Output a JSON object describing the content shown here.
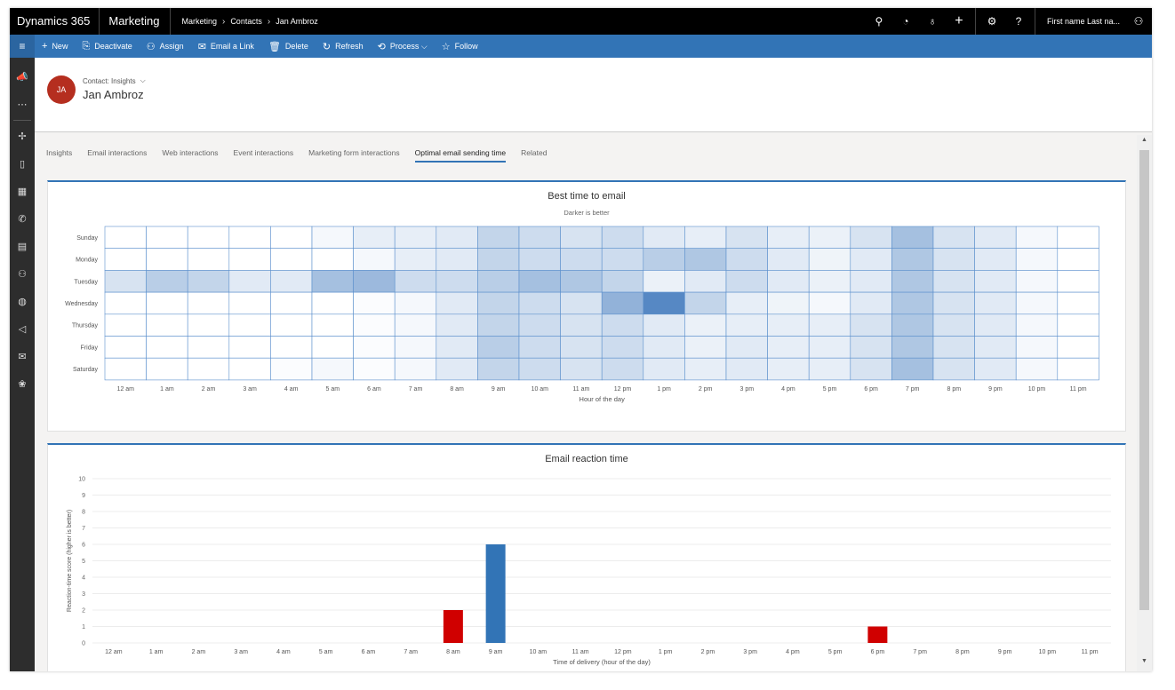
{
  "topbar": {
    "brand": "Dynamics 365",
    "app": "Marketing",
    "breadcrumb": [
      "Marketing",
      "Contacts",
      "Jan Ambroz"
    ],
    "user": "First name Last na..."
  },
  "commands": [
    {
      "icon": "plus-icon",
      "glyph": "+",
      "label": "New"
    },
    {
      "icon": "deactivate-icon",
      "glyph": "⎘",
      "label": "Deactivate"
    },
    {
      "icon": "assign-icon",
      "glyph": "⚇",
      "label": "Assign"
    },
    {
      "icon": "email-link-icon",
      "glyph": "✉",
      "label": "Email a Link"
    },
    {
      "icon": "trash-icon",
      "glyph": "🗑",
      "label": "Delete"
    },
    {
      "icon": "refresh-icon",
      "glyph": "↻",
      "label": "Refresh"
    },
    {
      "icon": "process-icon",
      "glyph": "⟲",
      "label": "Process ⌵"
    },
    {
      "icon": "star-icon",
      "glyph": "☆",
      "label": "Follow"
    }
  ],
  "form": {
    "initials": "JA",
    "entity_label": "Contact: Insights",
    "name": "Jan Ambroz"
  },
  "tabs": [
    "Insights",
    "Email interactions",
    "Web interactions",
    "Event interactions",
    "Marketing form interactions",
    "Optimal email sending time",
    "Related"
  ],
  "active_tab": 5,
  "heatmap": {
    "title": "Best time to email",
    "subtitle": "Darker is better",
    "xlabel": "Hour of the day",
    "chart_data": {
      "type": "heatmap",
      "x": [
        "12 am",
        "1 am",
        "2 am",
        "3 am",
        "4 am",
        "5 am",
        "6 am",
        "7 am",
        "8 am",
        "9 am",
        "10 am",
        "11 am",
        "12 pm",
        "1 pm",
        "2 pm",
        "3 pm",
        "4 pm",
        "5 pm",
        "6 pm",
        "7 pm",
        "8 pm",
        "9 pm",
        "10 pm",
        "11 pm"
      ],
      "y": [
        "Sunday",
        "Monday",
        "Tuesday",
        "Wednesday",
        "Thursday",
        "Friday",
        "Saturday"
      ],
      "values": [
        [
          0,
          0,
          0,
          0,
          0,
          0.05,
          0.12,
          0.12,
          0.15,
          0.3,
          0.25,
          0.2,
          0.25,
          0.15,
          0.12,
          0.2,
          0.12,
          0.1,
          0.2,
          0.45,
          0.2,
          0.15,
          0.05,
          0
        ],
        [
          0,
          0,
          0,
          0,
          0,
          0,
          0.05,
          0.12,
          0.15,
          0.3,
          0.25,
          0.25,
          0.25,
          0.35,
          0.4,
          0.25,
          0.15,
          0.08,
          0.15,
          0.4,
          0.2,
          0.15,
          0.05,
          0
        ],
        [
          0.2,
          0.35,
          0.3,
          0.15,
          0.15,
          0.45,
          0.5,
          0.25,
          0.25,
          0.35,
          0.45,
          0.4,
          0.3,
          0.1,
          0.15,
          0.25,
          0.15,
          0.1,
          0.15,
          0.4,
          0.2,
          0.15,
          0.05,
          0
        ],
        [
          0,
          0,
          0,
          0,
          0,
          0,
          0.02,
          0.05,
          0.15,
          0.3,
          0.25,
          0.2,
          0.55,
          0.85,
          0.3,
          0.12,
          0.08,
          0.05,
          0.15,
          0.4,
          0.2,
          0.15,
          0.05,
          0
        ],
        [
          0,
          0,
          0,
          0,
          0,
          0,
          0.02,
          0.05,
          0.15,
          0.3,
          0.25,
          0.2,
          0.25,
          0.15,
          0.1,
          0.12,
          0.12,
          0.12,
          0.2,
          0.4,
          0.2,
          0.15,
          0.05,
          0
        ],
        [
          0,
          0,
          0,
          0,
          0,
          0,
          0.02,
          0.05,
          0.15,
          0.35,
          0.25,
          0.2,
          0.25,
          0.15,
          0.1,
          0.15,
          0.12,
          0.12,
          0.2,
          0.4,
          0.2,
          0.15,
          0.05,
          0
        ],
        [
          0,
          0,
          0,
          0,
          0.02,
          0.05,
          0.02,
          0.05,
          0.15,
          0.3,
          0.25,
          0.2,
          0.25,
          0.15,
          0.12,
          0.15,
          0.12,
          0.12,
          0.2,
          0.45,
          0.2,
          0.15,
          0.05,
          0
        ]
      ]
    }
  },
  "reaction": {
    "title": "Email reaction time",
    "chart_data": {
      "type": "bar",
      "categories": [
        "12 am",
        "1 am",
        "2 am",
        "3 am",
        "4 am",
        "5 am",
        "6 am",
        "7 am",
        "8 am",
        "9 am",
        "10 am",
        "11 am",
        "12 pm",
        "1 pm",
        "2 pm",
        "3 pm",
        "4 pm",
        "5 pm",
        "6 pm",
        "7 pm",
        "8 pm",
        "9 pm",
        "10 pm",
        "11 pm"
      ],
      "values": [
        0,
        0,
        0,
        0,
        0,
        0,
        0,
        0,
        2,
        6,
        0,
        0,
        0,
        0,
        0,
        0,
        0,
        0,
        1,
        0,
        0,
        0,
        0,
        0
      ],
      "bar_colors": {
        "8 am": "#d00000",
        "9 am": "#3274b6",
        "6 pm": "#d00000"
      },
      "xlabel": "Time of delivery (hour of the day)",
      "ylabel": "Reaction-time score (higher is better)",
      "ylim": [
        0,
        10
      ],
      "yticks": [
        0,
        1,
        2,
        3,
        4,
        5,
        6,
        7,
        8,
        9,
        10
      ],
      "grid": true
    }
  }
}
